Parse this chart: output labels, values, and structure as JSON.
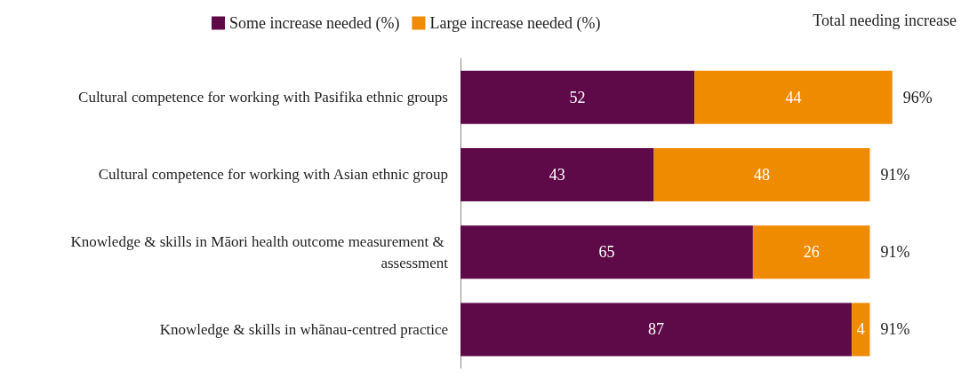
{
  "chart_data": {
    "type": "bar",
    "orientation": "horizontal",
    "stacked": true,
    "data_labels": true,
    "legend": "top",
    "categories": [
      "Cultural competence for working with Pasifika ethnic groups",
      "Cultural competence for working with Asian ethnic group",
      "Knowledge & skills in Māori health outcome measurement & assessment",
      "Knowledge & skills in whānau-centred practice"
    ],
    "series": [
      {
        "name": "Some increase needed (%)",
        "color": "#5e0a48",
        "values": [
          52,
          43,
          65,
          87
        ]
      },
      {
        "name": "Large increase needed (%)",
        "color": "#ee8b00",
        "values": [
          44,
          48,
          26,
          4
        ]
      }
    ],
    "totals": [
      "96%",
      "91%",
      "91%",
      "91%"
    ],
    "annotations": [
      "Total needing increase"
    ]
  }
}
